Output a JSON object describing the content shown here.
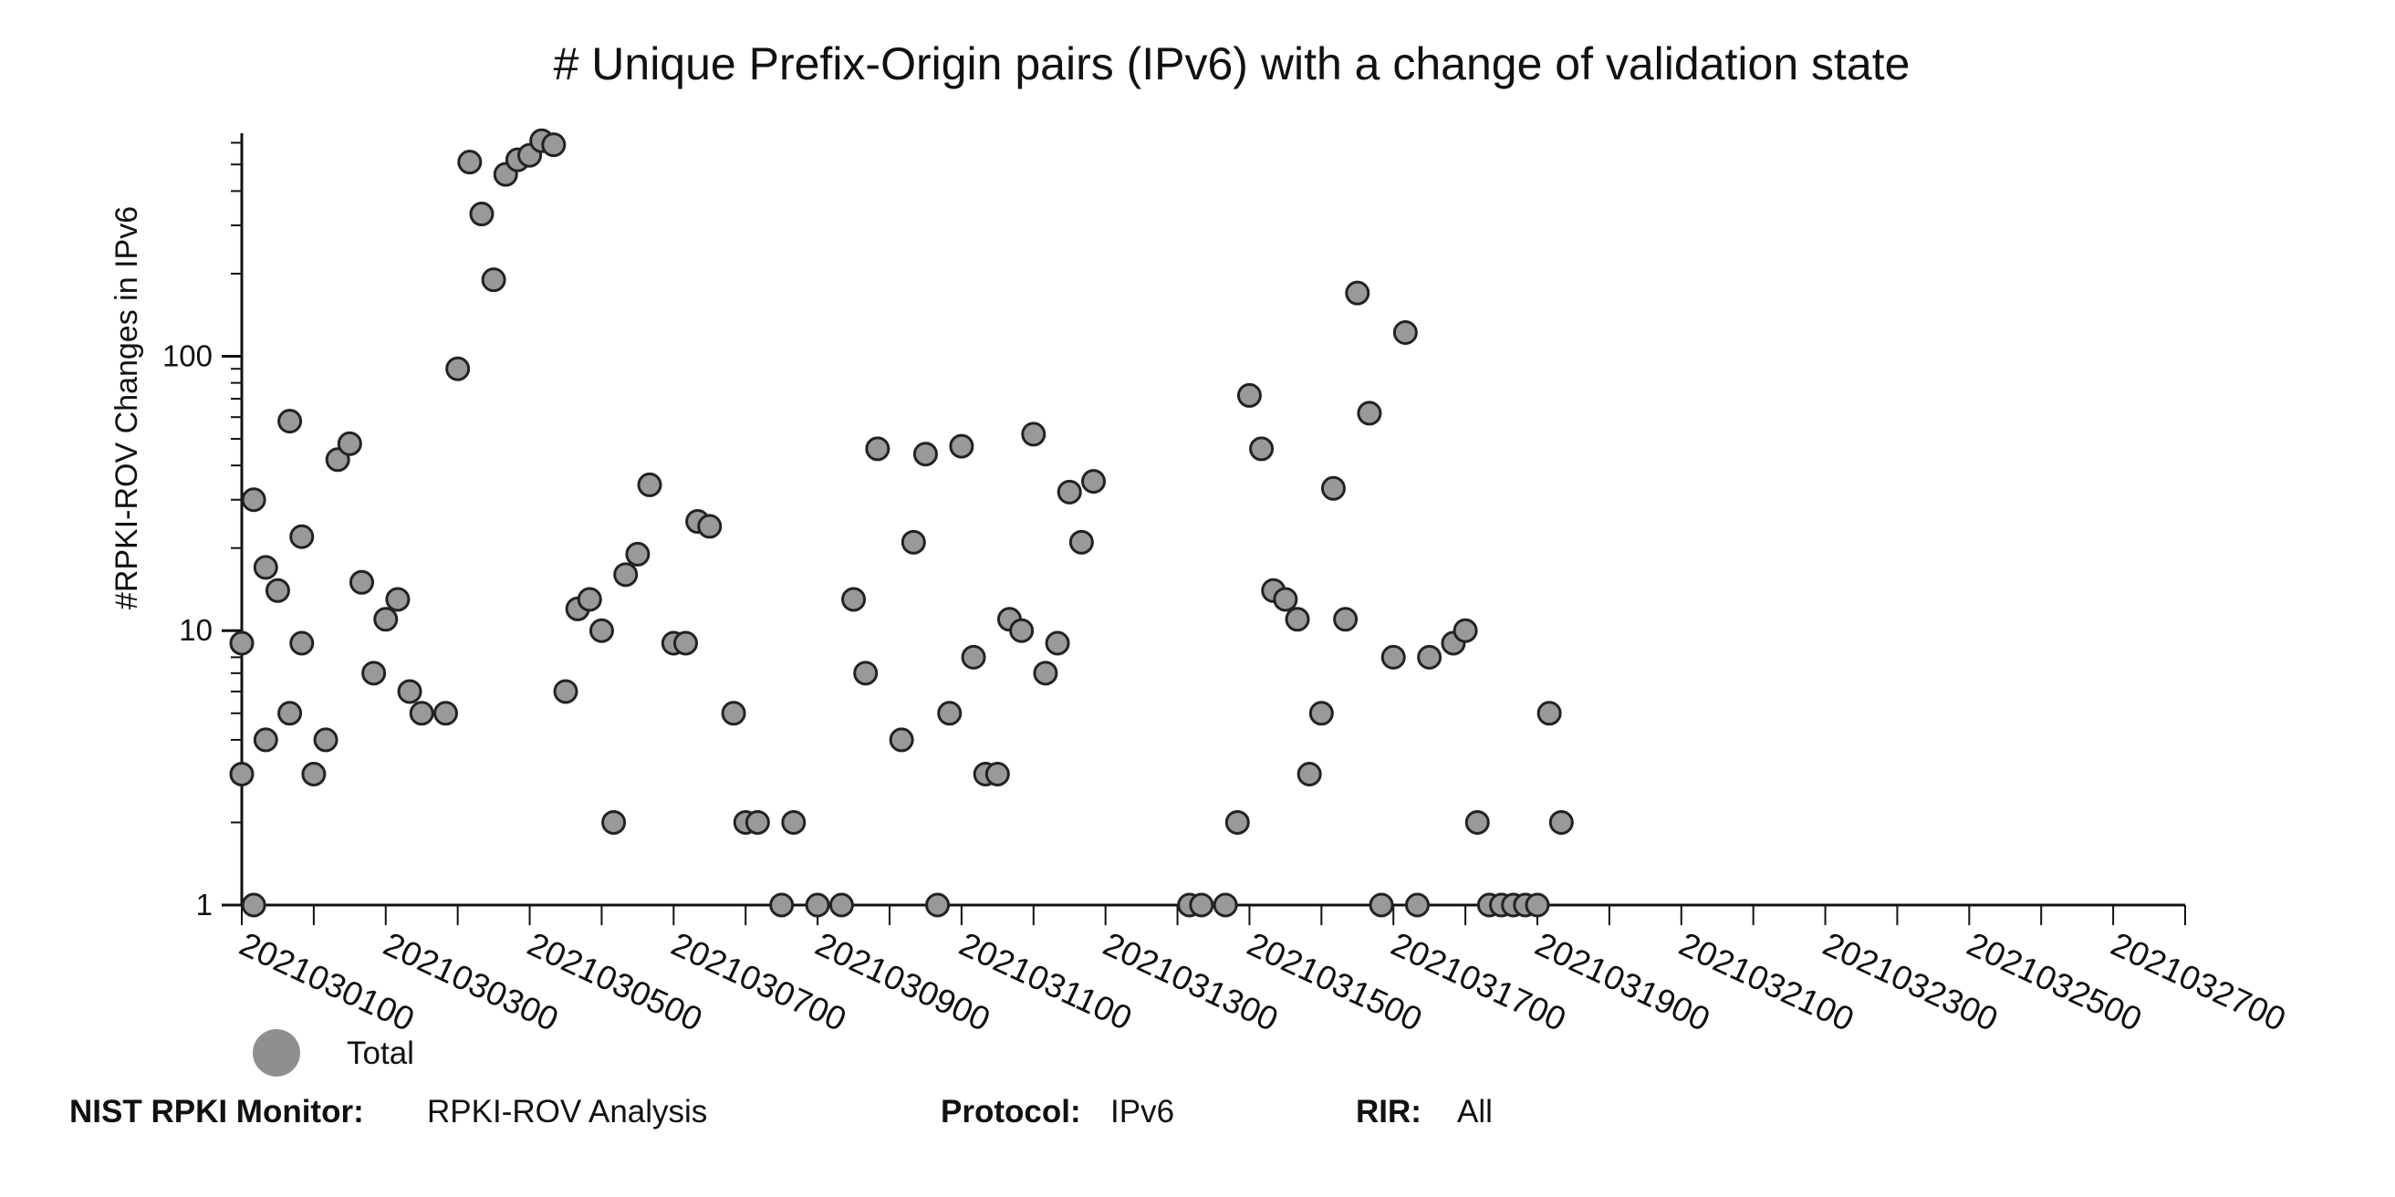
{
  "colors": {
    "point_fill": "#999999",
    "point_stroke": "#222222",
    "axis": "#111111"
  },
  "chart_data": {
    "type": "scatter",
    "title": "# Unique Prefix-Origin pairs (IPv6) with a change of validation state",
    "ylabel": "#RPKI-ROV Changes in IPv6",
    "xlabel": "",
    "y_scale": "log",
    "ylim": [
      1,
      650
    ],
    "y_ticks": [
      1,
      10,
      100
    ],
    "y_tick_labels": [
      "1",
      "10",
      "100"
    ],
    "x_start": "2021022900",
    "x_end": "2021032800",
    "x_ticks": [
      "2021030100",
      "2021030300",
      "2021030500",
      "2021030700",
      "2021030900",
      "2021031100",
      "2021031300",
      "2021031500",
      "2021031700",
      "2021031900",
      "2021032100",
      "2021032300",
      "2021032500",
      "2021032700"
    ],
    "x_tick_labels": [
      "2021030100",
      "2021030300",
      "2021030500",
      "2021030700",
      "2021030900",
      "2021031100",
      "2021031300",
      "2021031500",
      "2021031700",
      "2021031900",
      "2021032100",
      "2021032300",
      "2021032500",
      "2021032700"
    ],
    "grid": false,
    "legend_position": "bottom-left",
    "series": [
      {
        "name": "Total",
        "points": [
          {
            "x": "2021022900",
            "y": 9
          },
          {
            "x": "2021022904",
            "y": 1
          },
          {
            "x": "2021022908",
            "y": 17
          },
          {
            "x": "2021022912",
            "y": 14
          },
          {
            "x": "2021022916",
            "y": 58
          },
          {
            "x": "2021022920",
            "y": 22
          },
          {
            "x": "2021030100",
            "y": 3
          },
          {
            "x": "2021030104",
            "y": 30
          },
          {
            "x": "2021030108",
            "y": 4
          },
          {
            "x": "2021030116",
            "y": 5
          },
          {
            "x": "2021030120",
            "y": 9
          },
          {
            "x": "2021030200",
            "y": 3
          },
          {
            "x": "2021030204",
            "y": 4
          },
          {
            "x": "2021030208",
            "y": 42
          },
          {
            "x": "2021030212",
            "y": 48
          },
          {
            "x": "2021030216",
            "y": 15
          },
          {
            "x": "2021030220",
            "y": 7
          },
          {
            "x": "2021030300",
            "y": 11
          },
          {
            "x": "2021030304",
            "y": 13
          },
          {
            "x": "2021030308",
            "y": 6
          },
          {
            "x": "2021030312",
            "y": 5
          },
          {
            "x": "2021030320",
            "y": 5
          },
          {
            "x": "2021030400",
            "y": 90
          },
          {
            "x": "2021030404",
            "y": 510
          },
          {
            "x": "2021030408",
            "y": 330
          },
          {
            "x": "2021030412",
            "y": 190
          },
          {
            "x": "2021030416",
            "y": 460
          },
          {
            "x": "2021030420",
            "y": 520
          },
          {
            "x": "2021030500",
            "y": 540
          },
          {
            "x": "2021030504",
            "y": 610
          },
          {
            "x": "2021030508",
            "y": 590
          },
          {
            "x": "2021030512",
            "y": 6
          },
          {
            "x": "2021030516",
            "y": 12
          },
          {
            "x": "2021030520",
            "y": 13
          },
          {
            "x": "2021030600",
            "y": 10
          },
          {
            "x": "2021030604",
            "y": 2
          },
          {
            "x": "2021030608",
            "y": 16
          },
          {
            "x": "2021030612",
            "y": 19
          },
          {
            "x": "2021030616",
            "y": 34
          },
          {
            "x": "2021030700",
            "y": 9
          },
          {
            "x": "2021030704",
            "y": 9
          },
          {
            "x": "2021030708",
            "y": 25
          },
          {
            "x": "2021030712",
            "y": 24
          },
          {
            "x": "2021030720",
            "y": 5
          },
          {
            "x": "2021030800",
            "y": 2
          },
          {
            "x": "2021030804",
            "y": 2
          },
          {
            "x": "2021030812",
            "y": 1
          },
          {
            "x": "2021030816",
            "y": 2
          },
          {
            "x": "2021030900",
            "y": 1
          },
          {
            "x": "2021030908",
            "y": 1
          },
          {
            "x": "2021030912",
            "y": 13
          },
          {
            "x": "2021030916",
            "y": 7
          },
          {
            "x": "2021030920",
            "y": 46
          },
          {
            "x": "2021031004",
            "y": 4
          },
          {
            "x": "2021031008",
            "y": 21
          },
          {
            "x": "2021031012",
            "y": 44
          },
          {
            "x": "2021031016",
            "y": 1
          },
          {
            "x": "2021031020",
            "y": 5
          },
          {
            "x": "2021031100",
            "y": 47
          },
          {
            "x": "2021031104",
            "y": 8
          },
          {
            "x": "2021031108",
            "y": 3
          },
          {
            "x": "2021031112",
            "y": 3
          },
          {
            "x": "2021031116",
            "y": 11
          },
          {
            "x": "2021031120",
            "y": 10
          },
          {
            "x": "2021031200",
            "y": 52
          },
          {
            "x": "2021031204",
            "y": 7
          },
          {
            "x": "2021031208",
            "y": 9
          },
          {
            "x": "2021031212",
            "y": 32
          },
          {
            "x": "2021031216",
            "y": 21
          },
          {
            "x": "2021031220",
            "y": 35
          },
          {
            "x": "2021031404",
            "y": 1
          },
          {
            "x": "2021031408",
            "y": 1
          },
          {
            "x": "2021031416",
            "y": 1
          },
          {
            "x": "2021031420",
            "y": 2
          },
          {
            "x": "2021031500",
            "y": 72
          },
          {
            "x": "2021031504",
            "y": 46
          },
          {
            "x": "2021031508",
            "y": 14
          },
          {
            "x": "2021031512",
            "y": 13
          },
          {
            "x": "2021031516",
            "y": 11
          },
          {
            "x": "2021031520",
            "y": 3
          },
          {
            "x": "2021031600",
            "y": 5
          },
          {
            "x": "2021031604",
            "y": 33
          },
          {
            "x": "2021031608",
            "y": 11
          },
          {
            "x": "2021031612",
            "y": 170
          },
          {
            "x": "2021031616",
            "y": 62
          },
          {
            "x": "2021031620",
            "y": 1
          },
          {
            "x": "2021031700",
            "y": 8
          },
          {
            "x": "2021031704",
            "y": 122
          },
          {
            "x": "2021031708",
            "y": 1
          },
          {
            "x": "2021031712",
            "y": 8
          },
          {
            "x": "2021031720",
            "y": 9
          },
          {
            "x": "2021031800",
            "y": 10
          },
          {
            "x": "2021031804",
            "y": 2
          },
          {
            "x": "2021031808",
            "y": 1
          },
          {
            "x": "2021031812",
            "y": 1
          },
          {
            "x": "2021031816",
            "y": 1
          },
          {
            "x": "2021031820",
            "y": 1
          },
          {
            "x": "2021031900",
            "y": 1
          },
          {
            "x": "2021031904",
            "y": 5
          },
          {
            "x": "2021031908",
            "y": 2
          }
        ]
      }
    ]
  },
  "legend": {
    "label": "Total"
  },
  "footer": {
    "monitor_label": "NIST RPKI Monitor:",
    "monitor_value": "RPKI-ROV Analysis",
    "protocol_label": "Protocol:",
    "protocol_value": "IPv6",
    "rir_label": "RIR:",
    "rir_value": "All"
  }
}
